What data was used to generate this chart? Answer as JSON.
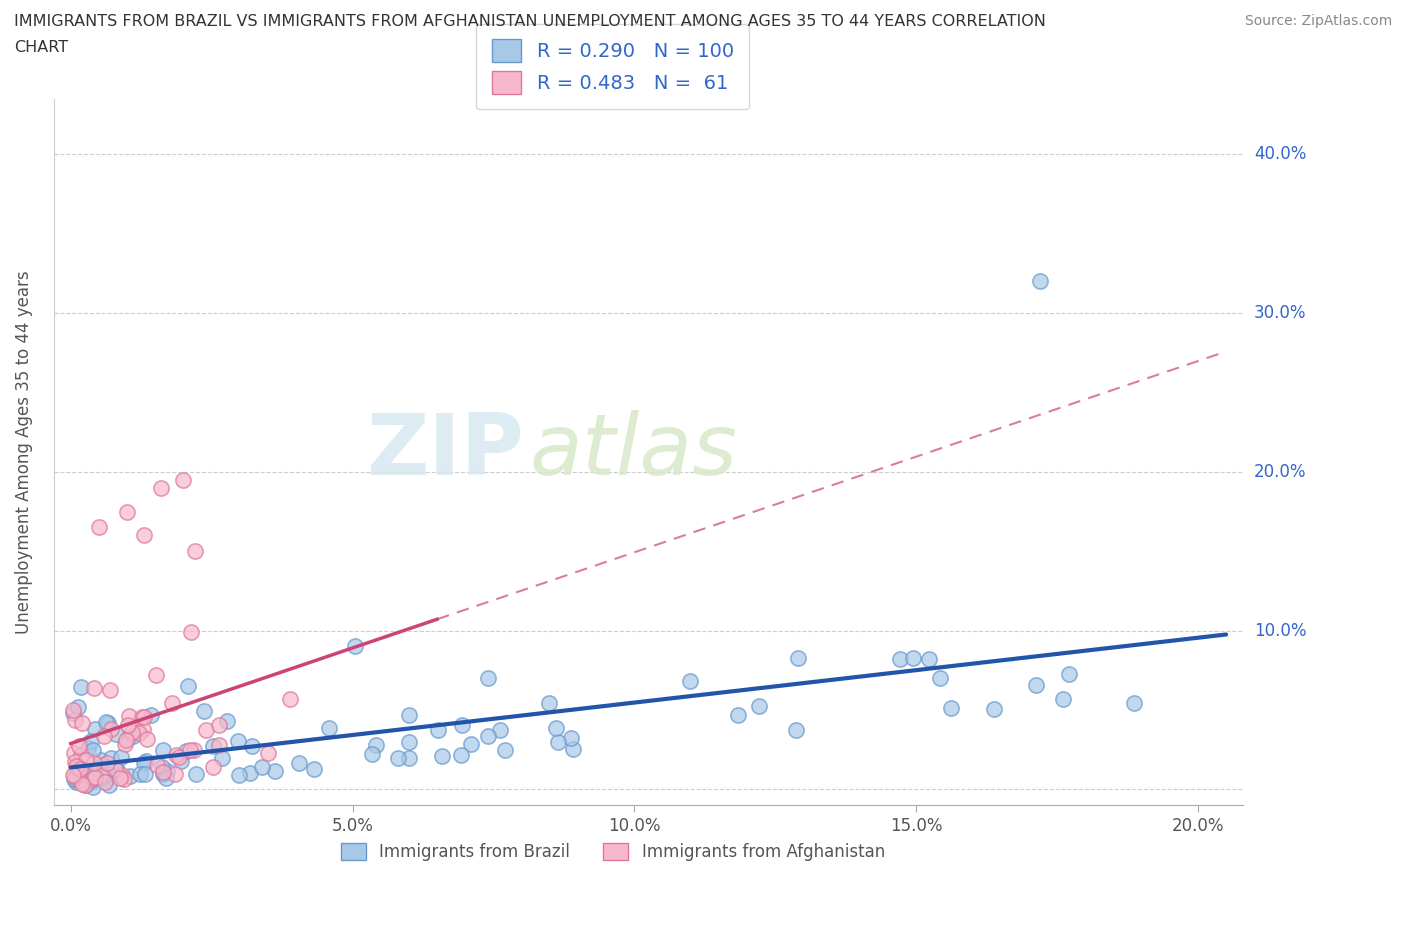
{
  "title_line1": "IMMIGRANTS FROM BRAZIL VS IMMIGRANTS FROM AFGHANISTAN UNEMPLOYMENT AMONG AGES 35 TO 44 YEARS CORRELATION",
  "title_line2": "CHART",
  "source_text": "Source: ZipAtlas.com",
  "ylabel": "Unemployment Among Ages 35 to 44 years",
  "brazil_color_fill": "#a8c8e8",
  "brazil_color_edge": "#6699cc",
  "afghanistan_color_fill": "#f8b8cc",
  "afghanistan_color_edge": "#dd7799",
  "brazil_trend_color": "#2255aa",
  "afghanistan_trend_color": "#cc4477",
  "brazil_R": 0.29,
  "brazil_N": 100,
  "afghanistan_R": 0.483,
  "afghanistan_N": 61,
  "watermark_zip": "ZIP",
  "watermark_atlas": "atlas",
  "background_color": "#ffffff",
  "grid_color": "#cccccc",
  "legend_color": "#3366cc",
  "ytick_color": "#3366cc",
  "title_color": "#333333",
  "source_color": "#888888",
  "tick_color": "#555555"
}
